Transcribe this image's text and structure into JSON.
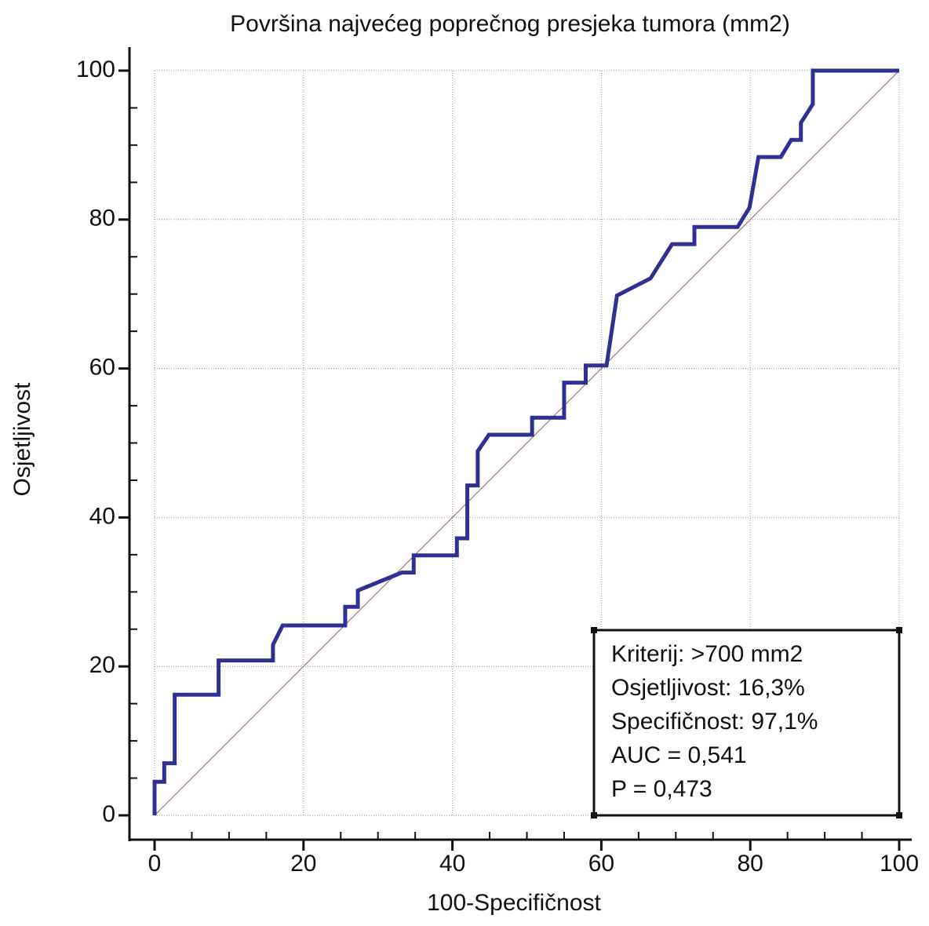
{
  "chart_data": {
    "type": "line",
    "title": "Površina najvećeg poprečnog presjeka tumora (mm2)",
    "x_label": "100-Specifičnost",
    "y_label": "Osjetljivost",
    "xlim": [
      0,
      100
    ],
    "ylim": [
      0,
      100
    ],
    "xticks": [
      0,
      20,
      40,
      60,
      80,
      100
    ],
    "yticks": [
      0,
      20,
      40,
      60,
      80,
      100
    ],
    "minor_xticks": [
      5,
      10,
      15,
      25,
      30,
      35,
      45,
      50,
      55,
      65,
      70,
      75,
      85,
      90,
      95
    ],
    "minor_yticks": [
      5,
      10,
      15,
      25,
      30,
      35,
      45,
      50,
      55,
      65,
      70,
      75,
      85,
      90,
      95
    ],
    "grid": true,
    "series": [
      {
        "color": "#2e3192",
        "x": [
          0,
          0,
          1.3,
          1.3,
          2.7,
          2.7,
          8.6,
          8.6,
          15.9,
          15.9,
          17.2,
          25.6,
          25.6,
          27.3,
          27.3,
          33.2,
          34.8,
          34.8,
          40.6,
          40.6,
          42.0,
          42.0,
          43.4,
          43.4,
          44.9,
          50.7,
          50.7,
          55.0,
          55.0,
          57.9,
          57.9,
          60.7,
          62.1,
          66.6,
          69.5,
          72.5,
          72.5,
          78.3,
          79.9,
          81.1,
          84.1,
          85.5,
          86.8,
          86.8,
          88.4,
          88.4,
          100
        ],
        "values": [
          0,
          4.5,
          4.5,
          7.0,
          7.0,
          16.2,
          16.2,
          20.8,
          20.8,
          22.9,
          25.5,
          25.5,
          28.0,
          28.0,
          30.2,
          32.6,
          32.6,
          34.9,
          34.9,
          37.2,
          37.2,
          44.3,
          44.3,
          48.9,
          51.1,
          51.1,
          53.4,
          53.4,
          58.1,
          58.1,
          60.4,
          60.4,
          69.8,
          72.1,
          76.7,
          76.7,
          79.0,
          79.0,
          81.6,
          88.4,
          88.4,
          90.7,
          90.7,
          93.0,
          95.5,
          100,
          100
        ]
      }
    ],
    "reference_line": {
      "color": "#a07878",
      "x": [
        0,
        100
      ],
      "values": [
        0,
        100
      ]
    },
    "annotation_lines": [
      "Kriterij: >700 mm2",
      "Osjetljivost: 16,3%",
      "Specifičnost: 97,1%",
      "AUC = 0,541",
      "P = 0,473"
    ],
    "annotation_position": "lower right"
  }
}
